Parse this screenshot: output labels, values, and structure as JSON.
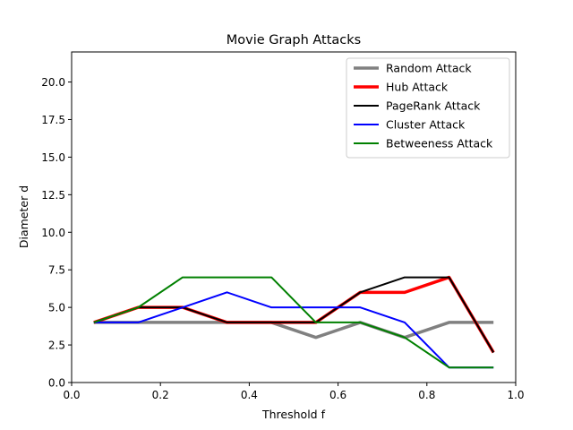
{
  "chart_data": {
    "type": "line",
    "title": "Movie Graph Attacks",
    "xlabel": "Threshold f",
    "ylabel": "Diameter d",
    "xlim": [
      0.0,
      1.0
    ],
    "ylim": [
      0.0,
      22.0
    ],
    "xticks": [
      0.0,
      0.2,
      0.4,
      0.6,
      0.8,
      1.0
    ],
    "xtick_labels": [
      "0.0",
      "0.2",
      "0.4",
      "0.6",
      "0.8",
      "1.0"
    ],
    "yticks": [
      0.0,
      2.5,
      5.0,
      7.5,
      10.0,
      12.5,
      15.0,
      17.5,
      20.0
    ],
    "ytick_labels": [
      "0.0",
      "2.5",
      "5.0",
      "7.5",
      "10.0",
      "12.5",
      "15.0",
      "17.5",
      "20.0"
    ],
    "grid": false,
    "legend_position": "top-right",
    "x": [
      0.05,
      0.15,
      0.25,
      0.35,
      0.45,
      0.55,
      0.65,
      0.75,
      0.85,
      0.95
    ],
    "series": [
      {
        "name": "Random Attack",
        "color": "#808080",
        "values": [
          4,
          4,
          4,
          4,
          4,
          3,
          4,
          3,
          4,
          4
        ]
      },
      {
        "name": "Hub Attack",
        "color": "#ff0000",
        "values": [
          4,
          5,
          5,
          4,
          4,
          4,
          6,
          6,
          7,
          2
        ]
      },
      {
        "name": "PageRank Attack",
        "color": "#000000",
        "values": [
          4,
          5,
          5,
          4,
          4,
          4,
          6,
          7,
          7,
          2
        ]
      },
      {
        "name": "Cluster Attack",
        "color": "#0000ff",
        "values": [
          4,
          4,
          5,
          6,
          5,
          5,
          5,
          4,
          1,
          1
        ]
      },
      {
        "name": "Betweeness Attack",
        "color": "#008000",
        "values": [
          4,
          5,
          7,
          7,
          7,
          4,
          4,
          3,
          1,
          1
        ]
      }
    ]
  }
}
